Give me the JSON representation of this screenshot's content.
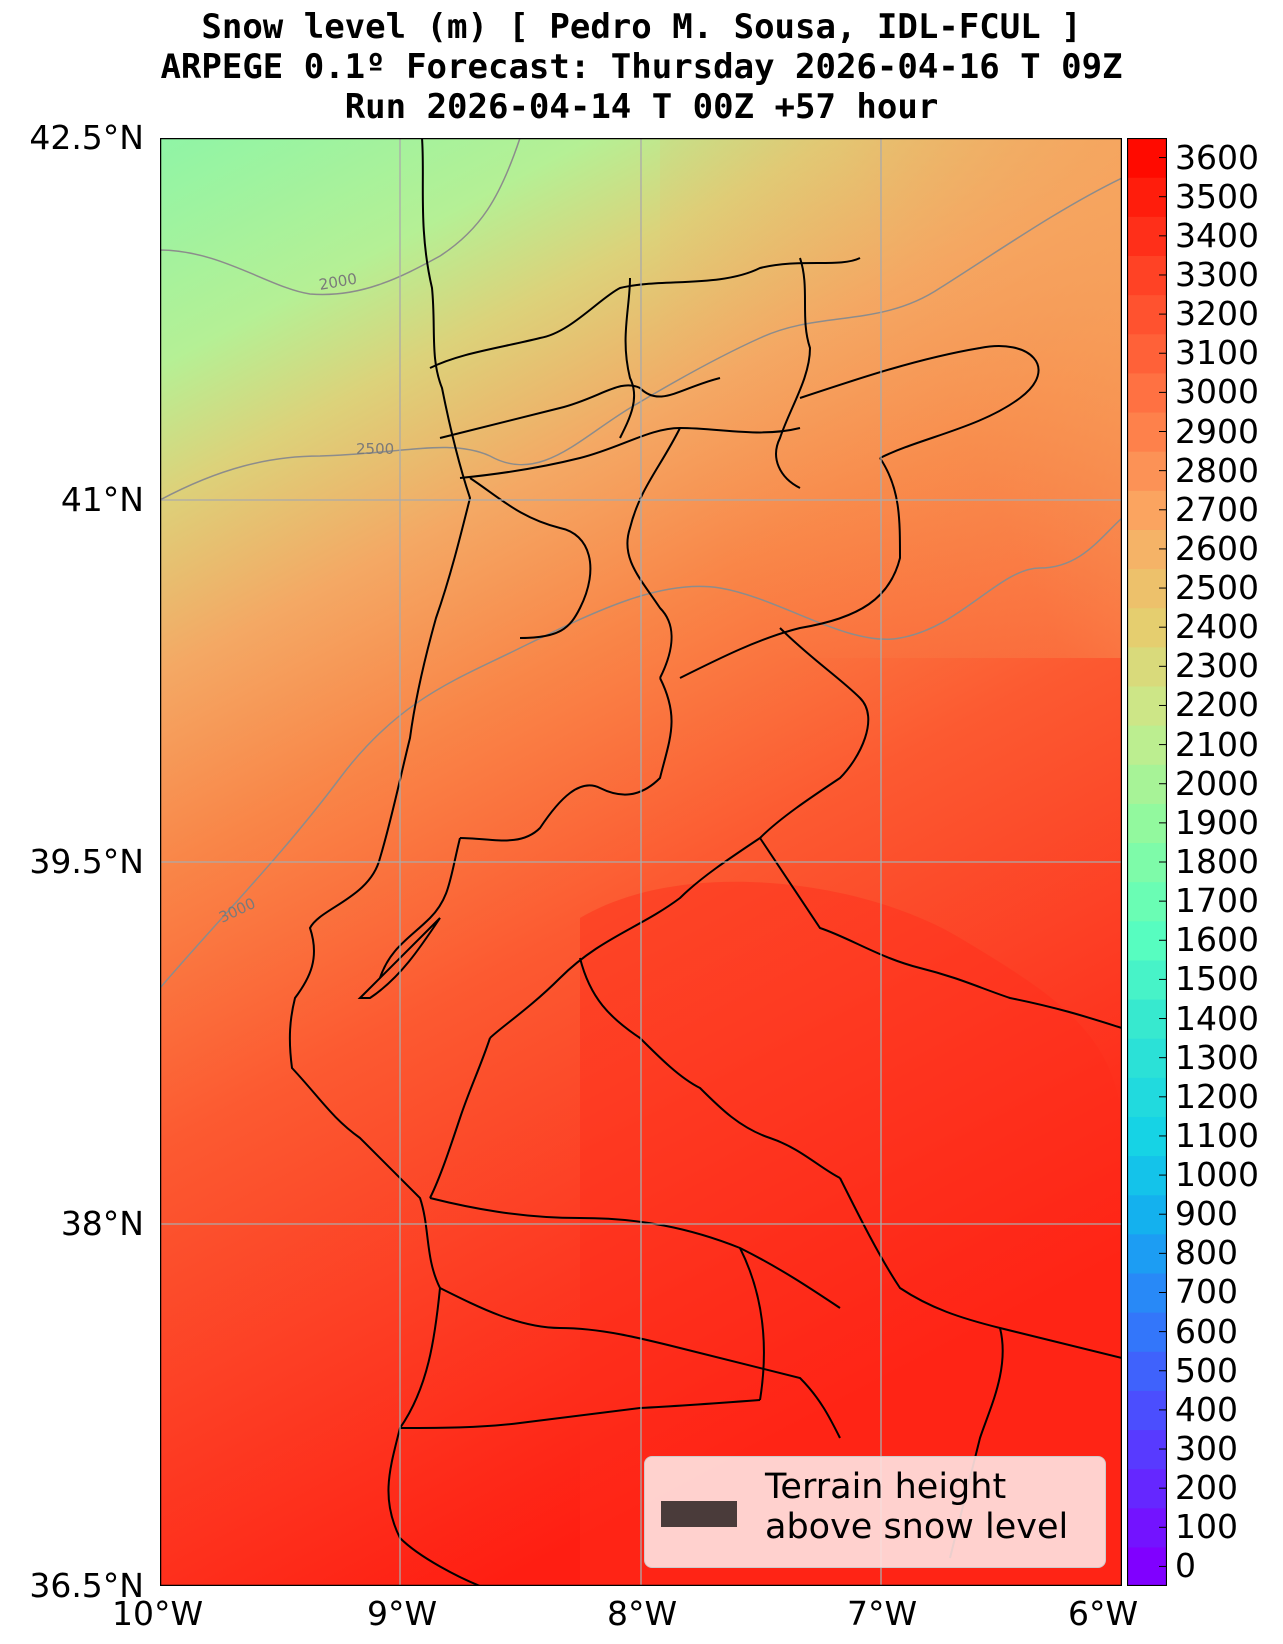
{
  "title": {
    "line1": "Snow level (m) [ Pedro M. Sousa, IDL-FCUL ]",
    "line2": "ARPEGE 0.1º Forecast: Thursday 2026-04-16 T 09Z",
    "line3": "Run 2026-04-14 T 00Z +57 hour"
  },
  "map": {
    "lat_range": [
      36.5,
      42.5
    ],
    "lon_range": [
      -10,
      -6
    ],
    "lat_ticks": [
      {
        "value": 42.5,
        "label": "42.5°N"
      },
      {
        "value": 41,
        "label": "41°N"
      },
      {
        "value": 39.5,
        "label": "39.5°N"
      },
      {
        "value": 38,
        "label": "38°N"
      },
      {
        "value": 36.5,
        "label": "36.5°N"
      }
    ],
    "lon_ticks": [
      {
        "value": -10,
        "label": "10°W"
      },
      {
        "value": -9,
        "label": "9°W"
      },
      {
        "value": -8,
        "label": "8°W"
      },
      {
        "value": -7,
        "label": "7°W"
      },
      {
        "value": -6,
        "label": "6°W"
      }
    ],
    "gridlines": true,
    "contour_labels": [
      "2000",
      "2500",
      "3000"
    ]
  },
  "colorbar": {
    "min": 0,
    "max": 3700,
    "step": 100,
    "labels": [
      "0",
      "100",
      "200",
      "300",
      "400",
      "500",
      "600",
      "700",
      "800",
      "900",
      "1000",
      "1100",
      "1200",
      "1300",
      "1400",
      "1500",
      "1600",
      "1700",
      "1800",
      "1900",
      "2000",
      "2100",
      "2200",
      "2300",
      "2400",
      "2500",
      "2600",
      "2700",
      "2800",
      "2900",
      "3000",
      "3100",
      "3200",
      "3300",
      "3400",
      "3500",
      "3600"
    ]
  },
  "legend": {
    "line1": "Terrain height",
    "line2": "above snow level",
    "swatch_color": "#4a3b3a",
    "placement": "bottom-right"
  }
}
